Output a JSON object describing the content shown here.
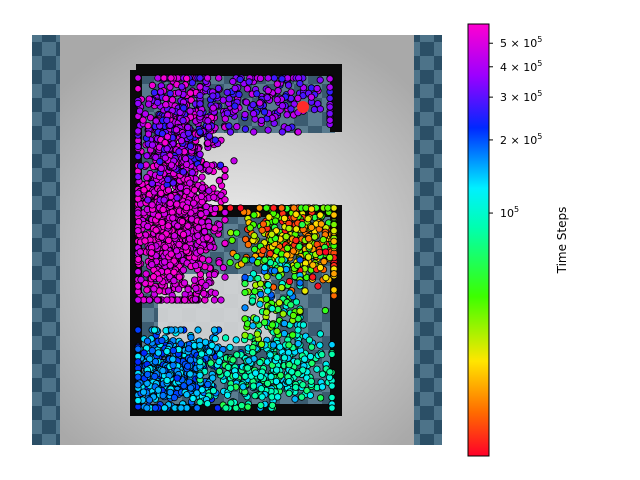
{
  "chart_data": {
    "type": "scatter",
    "title": "",
    "colorbar": {
      "label": "Time Steps",
      "scale": "log",
      "range": [
        10000,
        600000
      ],
      "ticks": [
        {
          "value": 100000,
          "label": "10^5",
          "mantissa": "1",
          "exp": "5"
        },
        {
          "value": 200000,
          "label": "2×10^5",
          "mantissa": "2",
          "exp": "5"
        },
        {
          "value": 300000,
          "label": "3×10^5",
          "mantissa": "3",
          "exp": "5"
        },
        {
          "value": 400000,
          "label": "4×10^5",
          "mantissa": "4",
          "exp": "5"
        },
        {
          "value": 500000,
          "label": "5×10^5",
          "mantissa": "5",
          "exp": "5"
        }
      ],
      "colormap": "gist_rainbow"
    },
    "environment": "maze",
    "grid": false,
    "legend": "none",
    "goal_marker_color": "#ff2a2a",
    "clusters": [
      {
        "region": "bottom-left corridor",
        "count": 520,
        "t_range": [
          120000,
          230000
        ]
      },
      {
        "region": "bottom-right corridor",
        "count": 360,
        "t_range": [
          60000,
          150000
        ]
      },
      {
        "region": "right middle corridor",
        "count": 420,
        "t_range": [
          10000,
          60000
        ]
      },
      {
        "region": "center inner edge",
        "count": 140,
        "t_range": [
          30000,
          200000
        ]
      },
      {
        "region": "left vertical column",
        "count": 1100,
        "t_range": [
          450000,
          600000
        ]
      },
      {
        "region": "upper column",
        "count": 420,
        "t_range": [
          250000,
          600000
        ]
      },
      {
        "region": "top corridor",
        "count": 200,
        "t_range": [
          250000,
          480000
        ]
      }
    ]
  }
}
